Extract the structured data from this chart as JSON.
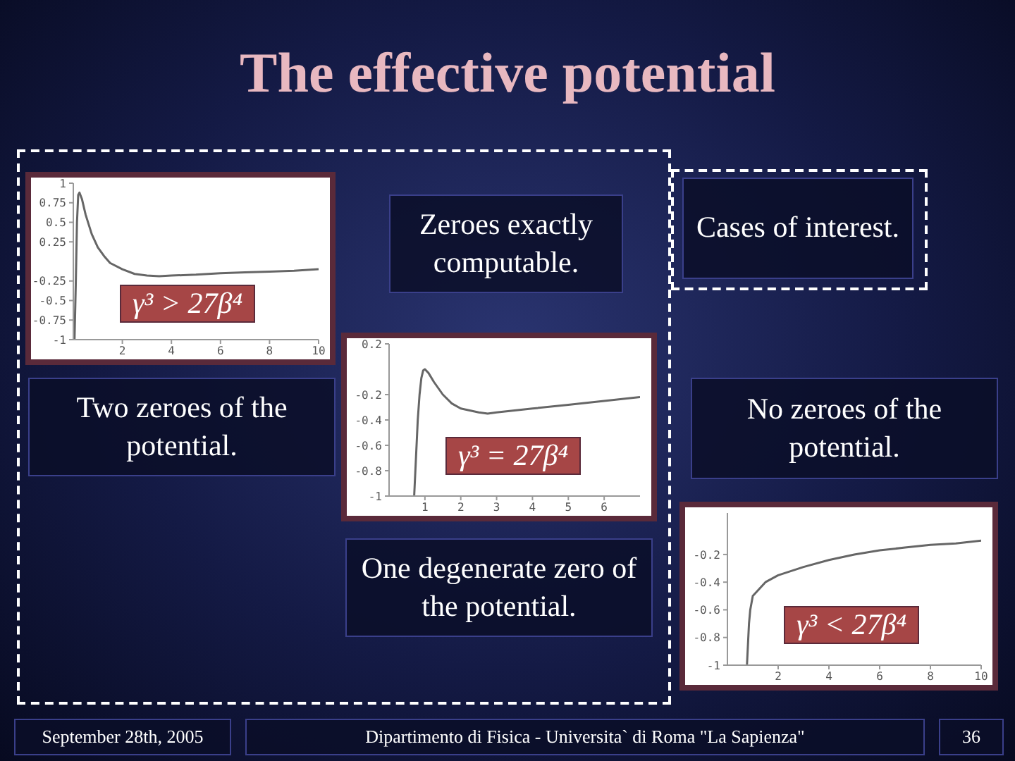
{
  "chart_data": [
    {
      "type": "other",
      "title": "The effective potential",
      "annotations": [
        "Zeroes exactly computable.",
        "Cases of interest.",
        "September 28th, 2005",
        "Dipartimento di Fisica - Universita` di Roma \"La Sapienza\"",
        "36"
      ]
    },
    {
      "type": "line",
      "x": [
        0.05,
        0.1,
        0.15,
        0.2,
        0.25,
        0.35,
        0.5,
        0.75,
        1,
        1.25,
        1.5,
        2,
        2.5,
        3,
        3.5,
        4,
        5,
        6,
        7,
        8,
        9,
        10
      ],
      "values": [
        -1,
        -0.3,
        0.5,
        0.85,
        0.88,
        0.8,
        0.6,
        0.35,
        0.18,
        0.07,
        -0.02,
        -0.1,
        -0.16,
        -0.18,
        -0.19,
        -0.18,
        -0.17,
        -0.15,
        -0.14,
        -0.13,
        -0.12,
        -0.1
      ],
      "color": "#666666",
      "xlim": [
        0,
        10
      ],
      "ylim": [
        -1,
        1
      ],
      "xticks": [
        2,
        4,
        6,
        8,
        10
      ],
      "yticks": [
        -1,
        -0.75,
        -0.5,
        -0.25,
        0.25,
        0.5,
        0.75,
        1
      ],
      "annotations": [
        "γ³ > 27β⁴",
        "Two zeroes of the potential."
      ]
    },
    {
      "type": "line",
      "x": [
        0.7,
        0.75,
        0.8,
        0.85,
        0.9,
        0.95,
        1,
        1.1,
        1.25,
        1.5,
        1.75,
        2,
        2.5,
        2.75,
        3,
        4,
        5,
        6,
        7
      ],
      "values": [
        -1,
        -0.7,
        -0.4,
        -0.2,
        -0.07,
        -0.01,
        0,
        -0.03,
        -0.1,
        -0.2,
        -0.27,
        -0.31,
        -0.34,
        -0.35,
        -0.34,
        -0.31,
        -0.28,
        -0.25,
        -0.22
      ],
      "color": "#666666",
      "xlim": [
        0,
        7
      ],
      "ylim": [
        -1,
        0.2
      ],
      "xticks": [
        1,
        2,
        3,
        4,
        5,
        6
      ],
      "yticks": [
        -1,
        -0.8,
        -0.6,
        -0.4,
        -0.2,
        0.2
      ],
      "annotations": [
        "γ³ = 27β⁴",
        "One degenerate zero of the potential."
      ]
    },
    {
      "type": "line",
      "x": [
        0.77,
        0.85,
        0.9,
        1,
        1.5,
        2,
        3,
        4,
        5,
        6,
        7,
        8,
        9,
        10
      ],
      "values": [
        -1,
        -0.7,
        -0.6,
        -0.5,
        -0.4,
        -0.35,
        -0.29,
        -0.24,
        -0.2,
        -0.17,
        -0.15,
        -0.13,
        -0.12,
        -0.1
      ],
      "color": "#666666",
      "xlim": [
        0,
        10
      ],
      "ylim": [
        -1,
        0.1
      ],
      "xticks": [
        2,
        4,
        6,
        8,
        10
      ],
      "yticks": [
        -1,
        -0.8,
        -0.6,
        -0.4,
        -0.2
      ],
      "annotations": [
        "γ³ < 27β⁴",
        "No zeroes of the potential."
      ]
    }
  ]
}
